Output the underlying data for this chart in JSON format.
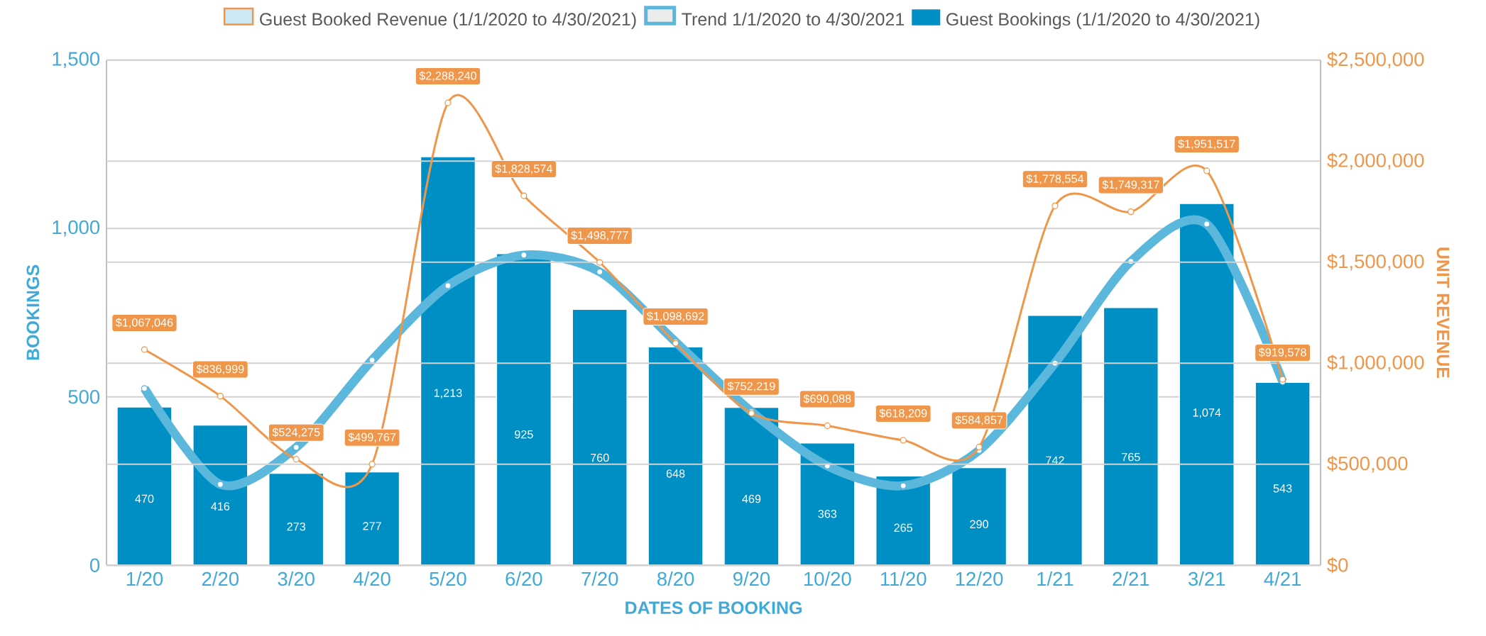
{
  "chart_data": {
    "type": "bar",
    "xlabel": "DATES OF BOOKING",
    "ylabel": "BOOKINGS",
    "y2label": "UNIT REVENUE",
    "categories": [
      "1/20",
      "2/20",
      "3/20",
      "4/20",
      "5/20",
      "6/20",
      "7/20",
      "8/20",
      "9/20",
      "10/20",
      "11/20",
      "12/20",
      "1/21",
      "2/21",
      "3/21",
      "4/21"
    ],
    "series": [
      {
        "name": "Guest Booked Revenue (1/1/2020 to 4/30/2021)",
        "type": "line",
        "axis": "y2",
        "color": "#f0964a",
        "marker": "circle",
        "values": [
          1067046,
          836999,
          524275,
          499767,
          2288240,
          1828574,
          1498777,
          1098692,
          752219,
          690088,
          618209,
          584857,
          1778554,
          1749317,
          1951517,
          919578
        ],
        "value_labels": [
          "$1,067,046",
          "$836,999",
          "$524,275",
          "$499,767",
          "$2,288,240",
          "$1,828,574",
          "$1,498,777",
          "$1,098,692",
          "$752,219",
          "$690,088",
          "$618,209",
          "$584,857",
          "$1,778,554",
          "$1,749,317",
          "$1,951,517",
          "$919,578"
        ]
      },
      {
        "name": "Trend 1/1/2020 to 4/30/2021",
        "type": "line",
        "axis": "y",
        "color": "#5bb8dc",
        "marker": "circle",
        "values": [
          525,
          240,
          350,
          609,
          830,
          921,
          871,
          663,
          456,
          295,
          236,
          341,
          600,
          902,
          1013,
          545
        ]
      },
      {
        "name": "Guest Bookings (1/1/2020 to 4/30/2021)",
        "axis": "y",
        "color": "#008fc5",
        "values": [
          470,
          416,
          273,
          277,
          1213,
          925,
          760,
          648,
          469,
          363,
          265,
          290,
          742,
          765,
          1074,
          543
        ],
        "value_labels": [
          "470",
          "416",
          "273",
          "277",
          "1,213",
          "925",
          "760",
          "648",
          "469",
          "363",
          "265",
          "290",
          "742",
          "765",
          "1,074",
          "543"
        ]
      }
    ],
    "ylim": [
      0,
      1500
    ],
    "yticks": [
      0,
      500,
      {
        "value": 1000,
        "label": "1,000"
      },
      {
        "value": 1500,
        "label": "1,500"
      }
    ],
    "y2lim": [
      0,
      2500000
    ],
    "y2ticks": [
      {
        "value": 0,
        "label": "$0"
      },
      {
        "value": 500000,
        "label": "$500,000"
      },
      {
        "value": 1000000,
        "label": "$1,000,000"
      },
      {
        "value": 1500000,
        "label": "$1,500,000"
      },
      {
        "value": 2000000,
        "label": "$2,000,000"
      },
      {
        "value": 2500000,
        "label": "$2,500,000"
      }
    ],
    "grid": true,
    "legend": "top"
  }
}
